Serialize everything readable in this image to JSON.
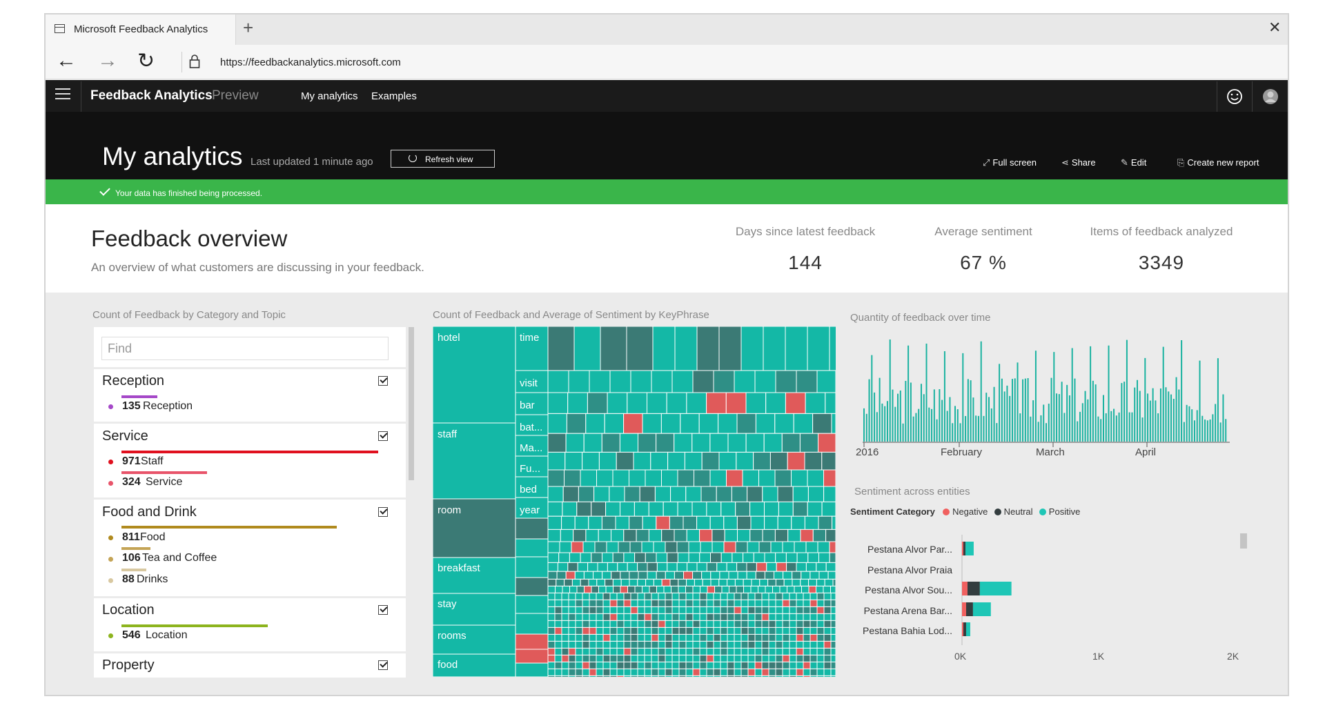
{
  "browser": {
    "tab_title": "Microsoft Feedback Analytics",
    "new_tab": "+",
    "close": "✕",
    "url": "https://feedbackanalytics.microsoft.com",
    "back": "←",
    "forward": "→",
    "refresh": "↻"
  },
  "app": {
    "title": "Feedback Analytics",
    "badge": "Preview",
    "nav": [
      "My analytics",
      "Examples"
    ]
  },
  "header": {
    "title": "My analytics",
    "last_updated": "Last updated 1 minute ago",
    "refresh_label": "Refresh view",
    "actions": {
      "full_screen": "Full screen",
      "share": "Share",
      "edit": "Edit",
      "create": "Create new report"
    }
  },
  "banner": {
    "text": "Your data has finished being processed.",
    "color": "#3ab54a"
  },
  "overview": {
    "title": "Feedback overview",
    "subtitle": "An overview of what customers are discussing in your feedback.",
    "kpis": [
      {
        "label": "Days since latest feedback",
        "value": "144"
      },
      {
        "label": "Average sentiment",
        "value": "67 %"
      },
      {
        "label": "Items of feedback analyzed",
        "value": "3349"
      }
    ]
  },
  "slicer": {
    "title": "Count of Feedback by Category and Topic",
    "find_placeholder": "Find",
    "categories": [
      {
        "name": "Reception",
        "topics": [
          {
            "count": "135",
            "name": "Reception",
            "color": "#a548c8"
          }
        ]
      },
      {
        "name": "Service",
        "topics": [
          {
            "count": "971",
            "name": "Staff",
            "color": "#e0101e"
          },
          {
            "count": "324",
            "name": "Service",
            "color": "#e8546a"
          }
        ]
      },
      {
        "name": "Food and Drink",
        "topics": [
          {
            "count": "811",
            "name": "Food",
            "color": "#b08a1e"
          },
          {
            "count": "106",
            "name": "Tea and Coffee",
            "color": "#c4a456"
          },
          {
            "count": "88",
            "name": "Drinks",
            "color": "#d8c8a0"
          }
        ]
      },
      {
        "name": "Location",
        "topics": [
          {
            "count": "546",
            "name": "Location",
            "color": "#8db41e"
          }
        ]
      },
      {
        "name": "Property",
        "topics": []
      }
    ]
  },
  "treemap": {
    "title": "Count of Feedback and Average of Sentiment by KeyPhrase",
    "colors": {
      "positive": "#14b8a6",
      "neutral": "#3b7a75",
      "negative": "#e05a5a",
      "mixed": "#2f8f86"
    },
    "labels": [
      "hotel",
      "time",
      "visit",
      "bar",
      "bat...",
      "Ma...",
      "Fu...",
      "bed",
      "staff",
      "room",
      "year",
      "breakfast",
      "stay",
      "rooms",
      "food"
    ]
  },
  "timeline": {
    "title": "Quantity of feedback over time",
    "x_labels": [
      "2016",
      "February",
      "March",
      "April"
    ],
    "color": "#19b2a0"
  },
  "chart_data": {
    "type": "bar",
    "title": "Sentiment across entities",
    "legend_title": "Sentiment Category",
    "legend": [
      {
        "name": "Negative",
        "color": "#f0605f"
      },
      {
        "name": "Neutral",
        "color": "#333d3f"
      },
      {
        "name": "Positive",
        "color": "#1ec6b6"
      }
    ],
    "categories": [
      "Pestana Alvor Par...",
      "Pestana Alvor Praia",
      "Pestana Alvor Sou...",
      "Pestana Arena Bar...",
      "Pestana Bahia Lod..."
    ],
    "series": [
      {
        "name": "Negative",
        "values": [
          10,
          0,
          40,
          30,
          10
        ]
      },
      {
        "name": "Neutral",
        "values": [
          15,
          0,
          90,
          50,
          20
        ]
      },
      {
        "name": "Positive",
        "values": [
          60,
          0,
          230,
          130,
          30
        ]
      }
    ],
    "x_ticks": [
      "0K",
      "1K",
      "2K"
    ],
    "xlim": [
      0,
      2000
    ]
  }
}
